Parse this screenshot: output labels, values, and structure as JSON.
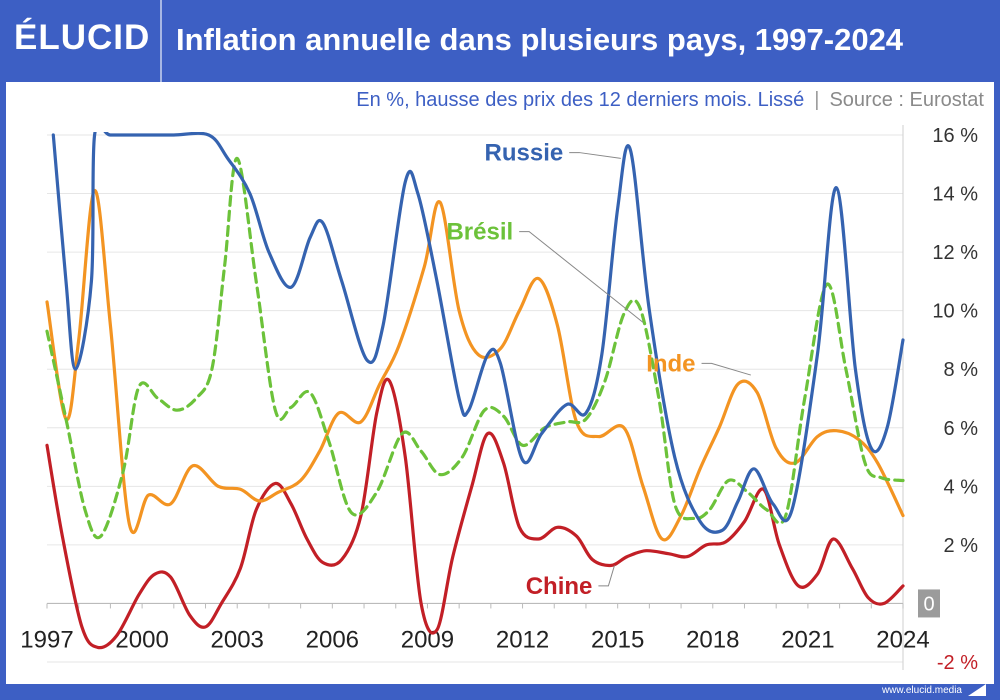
{
  "brand": {
    "logo": "ÉLUCID",
    "url": "www.elucid.media"
  },
  "header": {
    "title": "Inflation annuelle dans plusieurs pays, 1997-2024"
  },
  "subtitle": {
    "main": "En %, hausse des prix des 12 derniers mois. Lissé",
    "separator": "|",
    "source": "Source : Eurostat"
  },
  "chart_data": {
    "type": "line",
    "xlim": [
      1997,
      2024
    ],
    "ylim": [
      -2,
      16
    ],
    "grid": true,
    "x_ticks": [
      {
        "value": 1997,
        "label": "1997"
      },
      {
        "value": 2000,
        "label": "2000"
      },
      {
        "value": 2003,
        "label": "2003"
      },
      {
        "value": 2006,
        "label": "2006"
      },
      {
        "value": 2009,
        "label": "2009"
      },
      {
        "value": 2012,
        "label": "2012"
      },
      {
        "value": 2015,
        "label": "2015"
      },
      {
        "value": 2018,
        "label": "2018"
      },
      {
        "value": 2021,
        "label": "2021"
      },
      {
        "value": 2024,
        "label": "2024"
      }
    ],
    "y_ticks": [
      {
        "value": 16,
        "label": "16 %"
      },
      {
        "value": 14,
        "label": "14 %"
      },
      {
        "value": 12,
        "label": "12 %"
      },
      {
        "value": 10,
        "label": "10 %"
      },
      {
        "value": 8,
        "label": "8 %"
      },
      {
        "value": 6,
        "label": "6 %"
      },
      {
        "value": 4,
        "label": "4 %"
      },
      {
        "value": 2,
        "label": "2 %"
      },
      {
        "value": 0,
        "label": "0"
      },
      {
        "value": -2,
        "label": "-2 %"
      }
    ],
    "series": [
      {
        "name": "Russie",
        "color": "#3563b0",
        "dashed": false,
        "points": [
          [
            1997.2,
            16.0
          ],
          [
            1997.6,
            11.0
          ],
          [
            1997.9,
            8.0
          ],
          [
            1998.4,
            11.0
          ],
          [
            1998.5,
            16.0
          ],
          [
            1999,
            16
          ],
          [
            2000,
            16
          ],
          [
            2001,
            16
          ],
          [
            2002.1,
            16.0
          ],
          [
            2002.7,
            15.2
          ],
          [
            2003.4,
            14.0
          ],
          [
            2004,
            12.0
          ],
          [
            2004.7,
            10.8
          ],
          [
            2005.3,
            12.5
          ],
          [
            2005.7,
            13.0
          ],
          [
            2006.3,
            11.0
          ],
          [
            2007.1,
            8.3
          ],
          [
            2007.6,
            9.5
          ],
          [
            2008.3,
            14.4
          ],
          [
            2008.7,
            14.0
          ],
          [
            2009.3,
            11.0
          ],
          [
            2010.0,
            7.0
          ],
          [
            2010.3,
            6.6
          ],
          [
            2010.9,
            8.5
          ],
          [
            2011.3,
            8.2
          ],
          [
            2012.0,
            4.9
          ],
          [
            2012.6,
            5.8
          ],
          [
            2013.4,
            6.8
          ],
          [
            2014.0,
            6.5
          ],
          [
            2014.5,
            8.5
          ],
          [
            2015.0,
            13.5
          ],
          [
            2015.4,
            15.5
          ],
          [
            2016.0,
            10.0
          ],
          [
            2016.8,
            5.0
          ],
          [
            2017.6,
            2.8
          ],
          [
            2018.3,
            2.5
          ],
          [
            2018.8,
            3.5
          ],
          [
            2019.3,
            4.6
          ],
          [
            2019.9,
            3.4
          ],
          [
            2020.5,
            3.2
          ],
          [
            2021.3,
            8.5
          ],
          [
            2021.9,
            14.2
          ],
          [
            2022.5,
            8.0
          ],
          [
            2023.0,
            5.3
          ],
          [
            2023.5,
            6.0
          ],
          [
            2024.0,
            9.0
          ]
        ]
      },
      {
        "name": "Inde",
        "color": "#f39422",
        "dashed": false,
        "points": [
          [
            1997.0,
            10.3
          ],
          [
            1997.6,
            6.3
          ],
          [
            1998.0,
            9.0
          ],
          [
            1998.5,
            14.1
          ],
          [
            1999.0,
            9.5
          ],
          [
            1999.6,
            2.7
          ],
          [
            2000.2,
            3.7
          ],
          [
            2000.9,
            3.4
          ],
          [
            2001.6,
            4.7
          ],
          [
            2002.4,
            4.0
          ],
          [
            2003.1,
            3.9
          ],
          [
            2003.7,
            3.5
          ],
          [
            2004.3,
            3.8
          ],
          [
            2005.0,
            4.2
          ],
          [
            2005.6,
            5.2
          ],
          [
            2006.2,
            6.5
          ],
          [
            2006.9,
            6.2
          ],
          [
            2007.5,
            7.5
          ],
          [
            2008.1,
            8.8
          ],
          [
            2008.9,
            11.5
          ],
          [
            2009.4,
            13.7
          ],
          [
            2010.0,
            10.0
          ],
          [
            2010.6,
            8.5
          ],
          [
            2011.3,
            8.7
          ],
          [
            2011.9,
            10.0
          ],
          [
            2012.5,
            11.1
          ],
          [
            2013.1,
            9.5
          ],
          [
            2013.7,
            6.2
          ],
          [
            2014.4,
            5.7
          ],
          [
            2015.2,
            6.0
          ],
          [
            2015.8,
            4.0
          ],
          [
            2016.4,
            2.2
          ],
          [
            2017.0,
            3.0
          ],
          [
            2017.6,
            4.6
          ],
          [
            2018.2,
            6.0
          ],
          [
            2018.8,
            7.5
          ],
          [
            2019.4,
            7.2
          ],
          [
            2020.0,
            5.3
          ],
          [
            2020.6,
            4.8
          ],
          [
            2021.3,
            5.7
          ],
          [
            2021.9,
            5.9
          ],
          [
            2022.6,
            5.6
          ],
          [
            2023.2,
            4.8
          ],
          [
            2024.0,
            3.0
          ]
        ]
      },
      {
        "name": "Brésil",
        "color": "#6cc23a",
        "dashed": true,
        "points": [
          [
            1997.0,
            9.3
          ],
          [
            1997.6,
            6.3
          ],
          [
            1998.2,
            3.2
          ],
          [
            1998.7,
            2.3
          ],
          [
            1999.4,
            4.5
          ],
          [
            1999.9,
            7.4
          ],
          [
            2000.5,
            7.0
          ],
          [
            2001.1,
            6.6
          ],
          [
            2001.7,
            7.0
          ],
          [
            2002.2,
            8.0
          ],
          [
            2002.6,
            11.5
          ],
          [
            2003.0,
            15.2
          ],
          [
            2003.6,
            11.0
          ],
          [
            2004.2,
            6.6
          ],
          [
            2004.7,
            6.7
          ],
          [
            2005.3,
            7.2
          ],
          [
            2005.9,
            5.5
          ],
          [
            2006.6,
            3.1
          ],
          [
            2007.4,
            3.8
          ],
          [
            2008.2,
            5.8
          ],
          [
            2008.8,
            5.2
          ],
          [
            2009.4,
            4.4
          ],
          [
            2010.1,
            5.0
          ],
          [
            2010.8,
            6.6
          ],
          [
            2011.4,
            6.4
          ],
          [
            2012.0,
            5.4
          ],
          [
            2012.7,
            6.0
          ],
          [
            2013.4,
            6.2
          ],
          [
            2014.0,
            6.3
          ],
          [
            2014.6,
            7.6
          ],
          [
            2015.2,
            9.9
          ],
          [
            2015.7,
            10.1
          ],
          [
            2016.3,
            7.0
          ],
          [
            2016.8,
            3.4
          ],
          [
            2017.4,
            2.9
          ],
          [
            2017.9,
            3.2
          ],
          [
            2018.5,
            4.2
          ],
          [
            2019.1,
            3.8
          ],
          [
            2019.7,
            3.2
          ],
          [
            2020.3,
            3.0
          ],
          [
            2020.9,
            7.0
          ],
          [
            2021.6,
            10.9
          ],
          [
            2022.2,
            8.0
          ],
          [
            2022.8,
            4.8
          ],
          [
            2023.3,
            4.3
          ],
          [
            2024.0,
            4.2
          ]
        ]
      },
      {
        "name": "Chine",
        "color": "#c21f26",
        "dashed": false,
        "points": [
          [
            1997.0,
            5.4
          ],
          [
            1997.5,
            2.2
          ],
          [
            1998.1,
            -0.8
          ],
          [
            1998.6,
            -1.5
          ],
          [
            1999.2,
            -1.1
          ],
          [
            1999.9,
            0.3
          ],
          [
            2000.4,
            1.0
          ],
          [
            2000.9,
            0.9
          ],
          [
            2001.5,
            -0.4
          ],
          [
            2002.0,
            -0.8
          ],
          [
            2002.5,
            0.0
          ],
          [
            2003.1,
            1.2
          ],
          [
            2003.6,
            3.2
          ],
          [
            2004.2,
            4.1
          ],
          [
            2004.7,
            3.4
          ],
          [
            2005.2,
            2.2
          ],
          [
            2005.7,
            1.4
          ],
          [
            2006.3,
            1.5
          ],
          [
            2006.9,
            3.0
          ],
          [
            2007.4,
            6.5
          ],
          [
            2007.8,
            7.6
          ],
          [
            2008.3,
            5.0
          ],
          [
            2008.8,
            0.0
          ],
          [
            2009.3,
            -0.9
          ],
          [
            2009.8,
            1.6
          ],
          [
            2010.4,
            4.0
          ],
          [
            2010.9,
            5.8
          ],
          [
            2011.4,
            4.8
          ],
          [
            2011.9,
            2.6
          ],
          [
            2012.5,
            2.2
          ],
          [
            2013.1,
            2.6
          ],
          [
            2013.7,
            2.3
          ],
          [
            2014.2,
            1.5
          ],
          [
            2014.8,
            1.3
          ],
          [
            2015.3,
            1.6
          ],
          [
            2015.9,
            1.8
          ],
          [
            2016.6,
            1.7
          ],
          [
            2017.2,
            1.6
          ],
          [
            2017.8,
            2.0
          ],
          [
            2018.4,
            2.1
          ],
          [
            2019.0,
            2.8
          ],
          [
            2019.6,
            3.9
          ],
          [
            2020.1,
            2.0
          ],
          [
            2020.7,
            0.6
          ],
          [
            2021.3,
            1.0
          ],
          [
            2021.8,
            2.2
          ],
          [
            2022.4,
            1.2
          ],
          [
            2022.9,
            0.2
          ],
          [
            2023.4,
            0.0
          ],
          [
            2024.0,
            0.6
          ]
        ]
      }
    ],
    "annotations": [
      {
        "series": "Russie",
        "text": "Russie",
        "color": "#3563b0",
        "at": [
          2010.8,
          15.4
        ],
        "anchor_at": [
          2015.1,
          15.2
        ]
      },
      {
        "series": "Brésil",
        "text": "Brésil",
        "color": "#6cc23a",
        "at": [
          2009.6,
          12.7
        ],
        "anchor_at": [
          2015.8,
          9.6
        ]
      },
      {
        "series": "Inde",
        "text": "Inde",
        "color": "#f39422",
        "at": [
          2015.9,
          8.2
        ],
        "anchor_at": [
          2019.2,
          7.8
        ]
      },
      {
        "series": "Chine",
        "text": "Chine",
        "color": "#c21f26",
        "at": [
          2012.1,
          0.6
        ],
        "anchor_at": [
          2014.9,
          1.3
        ]
      }
    ]
  }
}
